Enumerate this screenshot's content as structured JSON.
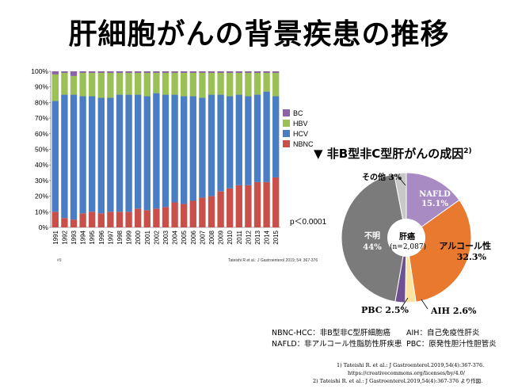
{
  "title": "肝細胞がんの背景疾患の推移",
  "colors": {
    "BC": "#8e62a6",
    "HBV": "#9bc156",
    "HCV": "#4a7dc4",
    "NBNC": "#c9504a"
  },
  "chart_data": [
    {
      "type": "bar",
      "stacked": true,
      "categories": [
        "1991",
        "1992",
        "1993",
        "1994",
        "1995",
        "1996",
        "1997",
        "1998",
        "1999",
        "2000",
        "2001",
        "2002",
        "2003",
        "2004",
        "2005",
        "2006",
        "2007",
        "2008",
        "2009",
        "2010",
        "2011",
        "2012",
        "2013",
        "2014",
        "2015"
      ],
      "series": [
        {
          "name": "NBNC",
          "values": [
            10,
            6,
            5,
            9,
            10,
            9,
            10,
            10,
            10,
            12,
            11,
            12,
            13,
            16,
            15,
            17,
            19,
            20,
            23,
            25,
            27,
            27,
            29,
            29,
            32
          ]
        },
        {
          "name": "HCV",
          "values": [
            71,
            79,
            80,
            75,
            74,
            74,
            73,
            75,
            75,
            73,
            73,
            74,
            72,
            69,
            69,
            67,
            64,
            65,
            62,
            59,
            58,
            57,
            56,
            58,
            52
          ]
        },
        {
          "name": "HBV",
          "values": [
            17,
            14,
            12,
            15,
            15,
            16,
            16,
            14,
            14,
            14,
            15,
            13,
            14,
            14,
            15,
            15,
            16,
            14,
            14,
            15,
            14,
            15,
            14,
            12,
            15
          ]
        },
        {
          "name": "BC",
          "values": [
            2,
            1,
            3,
            1,
            1,
            1,
            1,
            1,
            1,
            1,
            1,
            1,
            1,
            1,
            1,
            1,
            1,
            1,
            1,
            1,
            1,
            1,
            1,
            1,
            1
          ]
        }
      ],
      "ylim": [
        0,
        100
      ],
      "yticks": [
        "0%",
        "10%",
        "20%",
        "30%",
        "40%",
        "50%",
        "60%",
        "70%",
        "80%",
        "90%",
        "100%"
      ],
      "legend": [
        "BC",
        "HBV",
        "HCV",
        "NBNC"
      ],
      "annotation": "p＜0.0001",
      "figure_no": "#9",
      "citation": "Tateishi R et al.: J Gastroenterol 2019; 54: 367-376"
    },
    {
      "type": "pie",
      "title": "▼ 非B型非C型肝がんの成因",
      "title_sup": "2)",
      "center_label": "肝癌",
      "center_sub": "(n=2,087)",
      "slices": [
        {
          "name": "NAFLD",
          "value": 15.1,
          "color": "#a98bc4",
          "label_name": "NAFLD",
          "label_value": "15.1%"
        },
        {
          "name": "アルコール性",
          "value": 32.3,
          "color": "#e8792e",
          "label_name": "アルコール性",
          "label_value": "32.3%"
        },
        {
          "name": "AIH",
          "value": 2.6,
          "color": "#fde5a0",
          "label_name": "AIH",
          "label_value": "2.6%"
        },
        {
          "name": "PBC",
          "value": 2.5,
          "color": "#6d5192",
          "label_name": "PBC",
          "label_value": "2.5%"
        },
        {
          "name": "不明",
          "value": 44.0,
          "color": "#7b7b7b",
          "label_name": "不明",
          "label_value": "44%"
        },
        {
          "name": "その他",
          "value": 3.0,
          "color": "#c8c8c8",
          "label_name": "その他",
          "label_value": "3%"
        }
      ]
    }
  ],
  "abbreviations": {
    "nbnc": "NBNC-HCC：非B型非C型肝細胞癌",
    "aih": "AIH：自己免疫性肝炎",
    "nafld": "NAFLD：非アルコール性脂肪性肝疾患",
    "pbc": "PBC：原発性胆汁性胆管炎"
  },
  "references": {
    "ref1a": "1)  Tateishi R. et al.: J Gastroenterol.2019,54(4):367-376.",
    "ref1b": "https://creativecommons.org/licenses/by/4.0/",
    "ref2": "2)  Tateishi R. et al.: J Gastroenterol.2019,54(4):367-376  より作図."
  }
}
